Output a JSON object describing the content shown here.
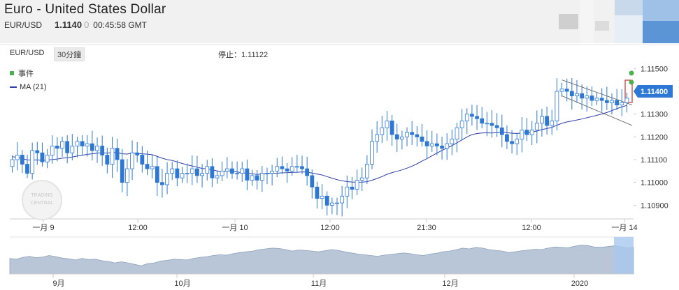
{
  "header": {
    "title": "Euro - United States Dollar",
    "pair": "EUR/USD",
    "price": "1.1140",
    "price_tail": "0",
    "time": "00:45:58 GMT"
  },
  "toolbar": {
    "symbol": "EUR/USD",
    "timeframe": "30分鐘",
    "stop_label": "停止：1.11122"
  },
  "legend": {
    "events_label": "事件",
    "ma_label": "MA (21)"
  },
  "watermark": "TRADING CENTRAL",
  "colors": {
    "up": "#2c78d4",
    "down": "#2c78d4",
    "ma": "#2e3ea8",
    "event": "#4caf50",
    "marker": "#d32f2f",
    "navigator_fill": "#b8c6d8",
    "navigator_highlight": "#a8c8f0"
  },
  "chart_data": {
    "type": "candlestick",
    "x_ticks": [
      "一月 9",
      "12:00",
      "一月 10",
      "12:00",
      "21:30",
      "12:00",
      "一月 14"
    ],
    "y_ticks": [
      "1.11500",
      "1.11400",
      "1.11300",
      "1.11200",
      "1.11100",
      "1.11000",
      "1.10900"
    ],
    "ylim": [
      1.1084,
      1.1155
    ],
    "current_price": "1.11400",
    "stop": 1.11122,
    "ma_period": 21,
    "close_series": [
      1.111,
      1.1112,
      1.1108,
      1.1104,
      1.1114,
      1.1113,
      1.1109,
      1.1112,
      1.1116,
      1.1115,
      1.1118,
      1.1113,
      1.1116,
      1.1118,
      1.1116,
      1.1117,
      1.1114,
      1.1116,
      1.1112,
      1.1108,
      1.1115,
      1.111,
      1.11,
      1.1106,
      1.1113,
      1.1112,
      1.1108,
      1.1106,
      1.1107,
      1.11,
      1.1099,
      1.1104,
      1.1106,
      1.1102,
      1.1104,
      1.1104,
      1.1106,
      1.1103,
      1.1104,
      1.1107,
      1.1102,
      1.1103,
      1.1105,
      1.1106,
      1.1104,
      1.1104,
      1.1106,
      1.1101,
      1.1103,
      1.1101,
      1.1104,
      1.1104,
      1.1105,
      1.1107,
      1.1106,
      1.1105,
      1.1107,
      1.1107,
      1.1106,
      1.1103,
      1.1098,
      1.1093,
      1.1094,
      1.109,
      1.1091,
      1.1091,
      1.1094,
      1.1098,
      1.1097,
      1.1101,
      1.1102,
      1.1108,
      1.1118,
      1.1121,
      1.1124,
      1.1127,
      1.1121,
      1.1119,
      1.112,
      1.1122,
      1.1121,
      1.112,
      1.1118,
      1.1116,
      1.1117,
      1.1116,
      1.1115,
      1.1117,
      1.1119,
      1.1124,
      1.1127,
      1.113,
      1.1129,
      1.1128,
      1.1126,
      1.1126,
      1.1125,
      1.1124,
      1.1121,
      1.1118,
      1.1117,
      1.1119,
      1.1123,
      1.1121,
      1.1123,
      1.1126,
      1.1129,
      1.1125,
      1.1127,
      1.114,
      1.1141,
      1.114,
      1.1138,
      1.1139,
      1.1137,
      1.1138,
      1.1136,
      1.1137,
      1.1136,
      1.1135,
      1.1136,
      1.1134,
      1.1135,
      1.1137
    ],
    "events": [
      1.1148,
      1.1144
    ],
    "channel": [
      [
        1.1145,
        1.1134
      ],
      [
        1.1138,
        1.1125
      ]
    ],
    "navigator": {
      "labels": [
        "9月",
        "10月",
        "11月",
        "12月",
        "2020"
      ],
      "values": [
        0.42,
        0.4,
        0.45,
        0.48,
        0.44,
        0.46,
        0.5,
        0.47,
        0.43,
        0.41,
        0.38,
        0.42,
        0.39,
        0.4,
        0.36,
        0.34,
        0.3,
        0.33,
        0.3,
        0.26,
        0.22,
        0.28,
        0.3,
        0.35,
        0.37,
        0.4,
        0.39,
        0.38,
        0.42,
        0.45,
        0.47,
        0.5,
        0.52,
        0.51,
        0.55,
        0.58,
        0.6,
        0.62,
        0.66,
        0.68,
        0.7,
        0.69,
        0.66,
        0.62,
        0.65,
        0.64,
        0.62,
        0.6,
        0.63,
        0.66,
        0.64,
        0.6,
        0.57,
        0.54,
        0.52,
        0.5,
        0.48,
        0.51,
        0.53,
        0.55,
        0.57,
        0.55,
        0.52,
        0.5,
        0.54,
        0.56,
        0.6,
        0.62,
        0.66,
        0.7,
        0.68,
        0.72,
        0.7,
        0.66,
        0.64,
        0.62,
        0.58,
        0.6,
        0.63,
        0.65,
        0.67,
        0.66,
        0.7,
        0.73,
        0.72,
        0.71,
        0.75,
        0.78,
        0.77,
        0.73,
        0.72,
        0.74,
        0.76,
        0.74,
        0.7,
        0.72
      ]
    }
  }
}
